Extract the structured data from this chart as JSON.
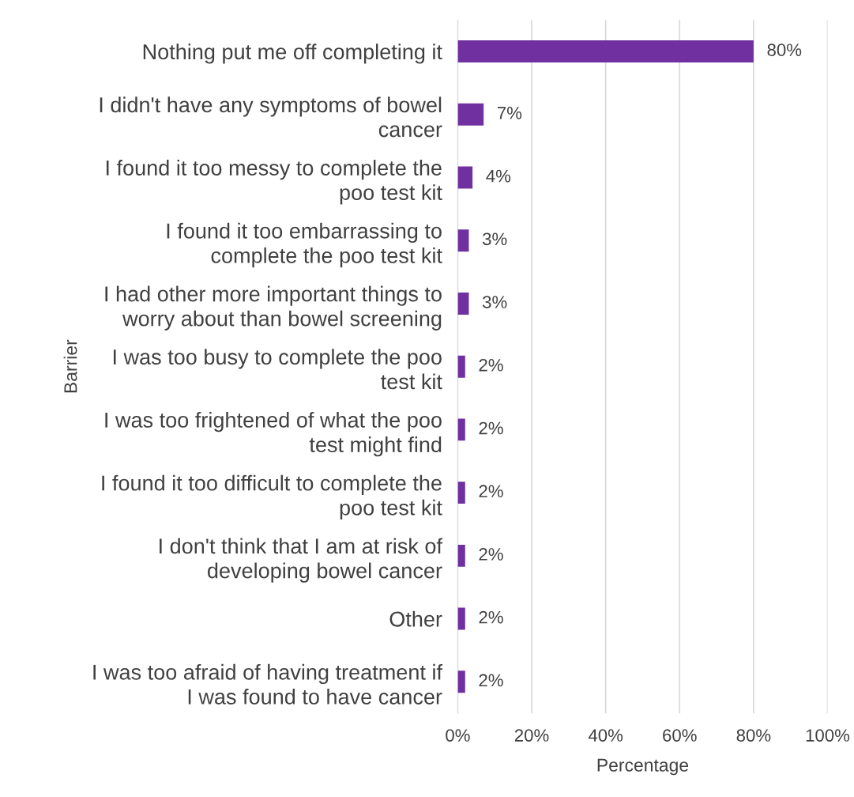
{
  "chart_data": {
    "type": "bar",
    "orientation": "horizontal",
    "xlabel": "Percentage",
    "ylabel": "Barrier",
    "categories": [
      "Nothing put me off completing it",
      "I didn't have any symptoms of bowel\ncancer",
      "I found it too messy to complete the\npoo test kit",
      "I found it too embarrassing to\ncomplete the poo test kit",
      "I had other more important things to\nworry about than bowel screening",
      "I was too busy to complete the poo\ntest kit",
      "I was too frightened of what the poo\ntest might find",
      "I found it too difficult to complete the\npoo test kit",
      "I don't think that I am at risk of\ndeveloping bowel cancer",
      "Other",
      "I was too afraid of having treatment if\nI was found to have cancer"
    ],
    "values": [
      80,
      7,
      4,
      3,
      3,
      2,
      2,
      2,
      2,
      2,
      2
    ],
    "value_labels": [
      "80%",
      "7%",
      "4%",
      "3%",
      "3%",
      "2%",
      "2%",
      "2%",
      "2%",
      "2%",
      "2%"
    ],
    "color": "#7030a0",
    "xlim": [
      0,
      100
    ],
    "xticks": [
      {
        "value": 0,
        "label": "0%"
      },
      {
        "value": 20,
        "label": "20%"
      },
      {
        "value": 40,
        "label": "40%"
      },
      {
        "value": 60,
        "label": "60%"
      },
      {
        "value": 80,
        "label": "80%"
      },
      {
        "value": 100,
        "label": "100%"
      }
    ],
    "grid": "x",
    "legend": false
  }
}
